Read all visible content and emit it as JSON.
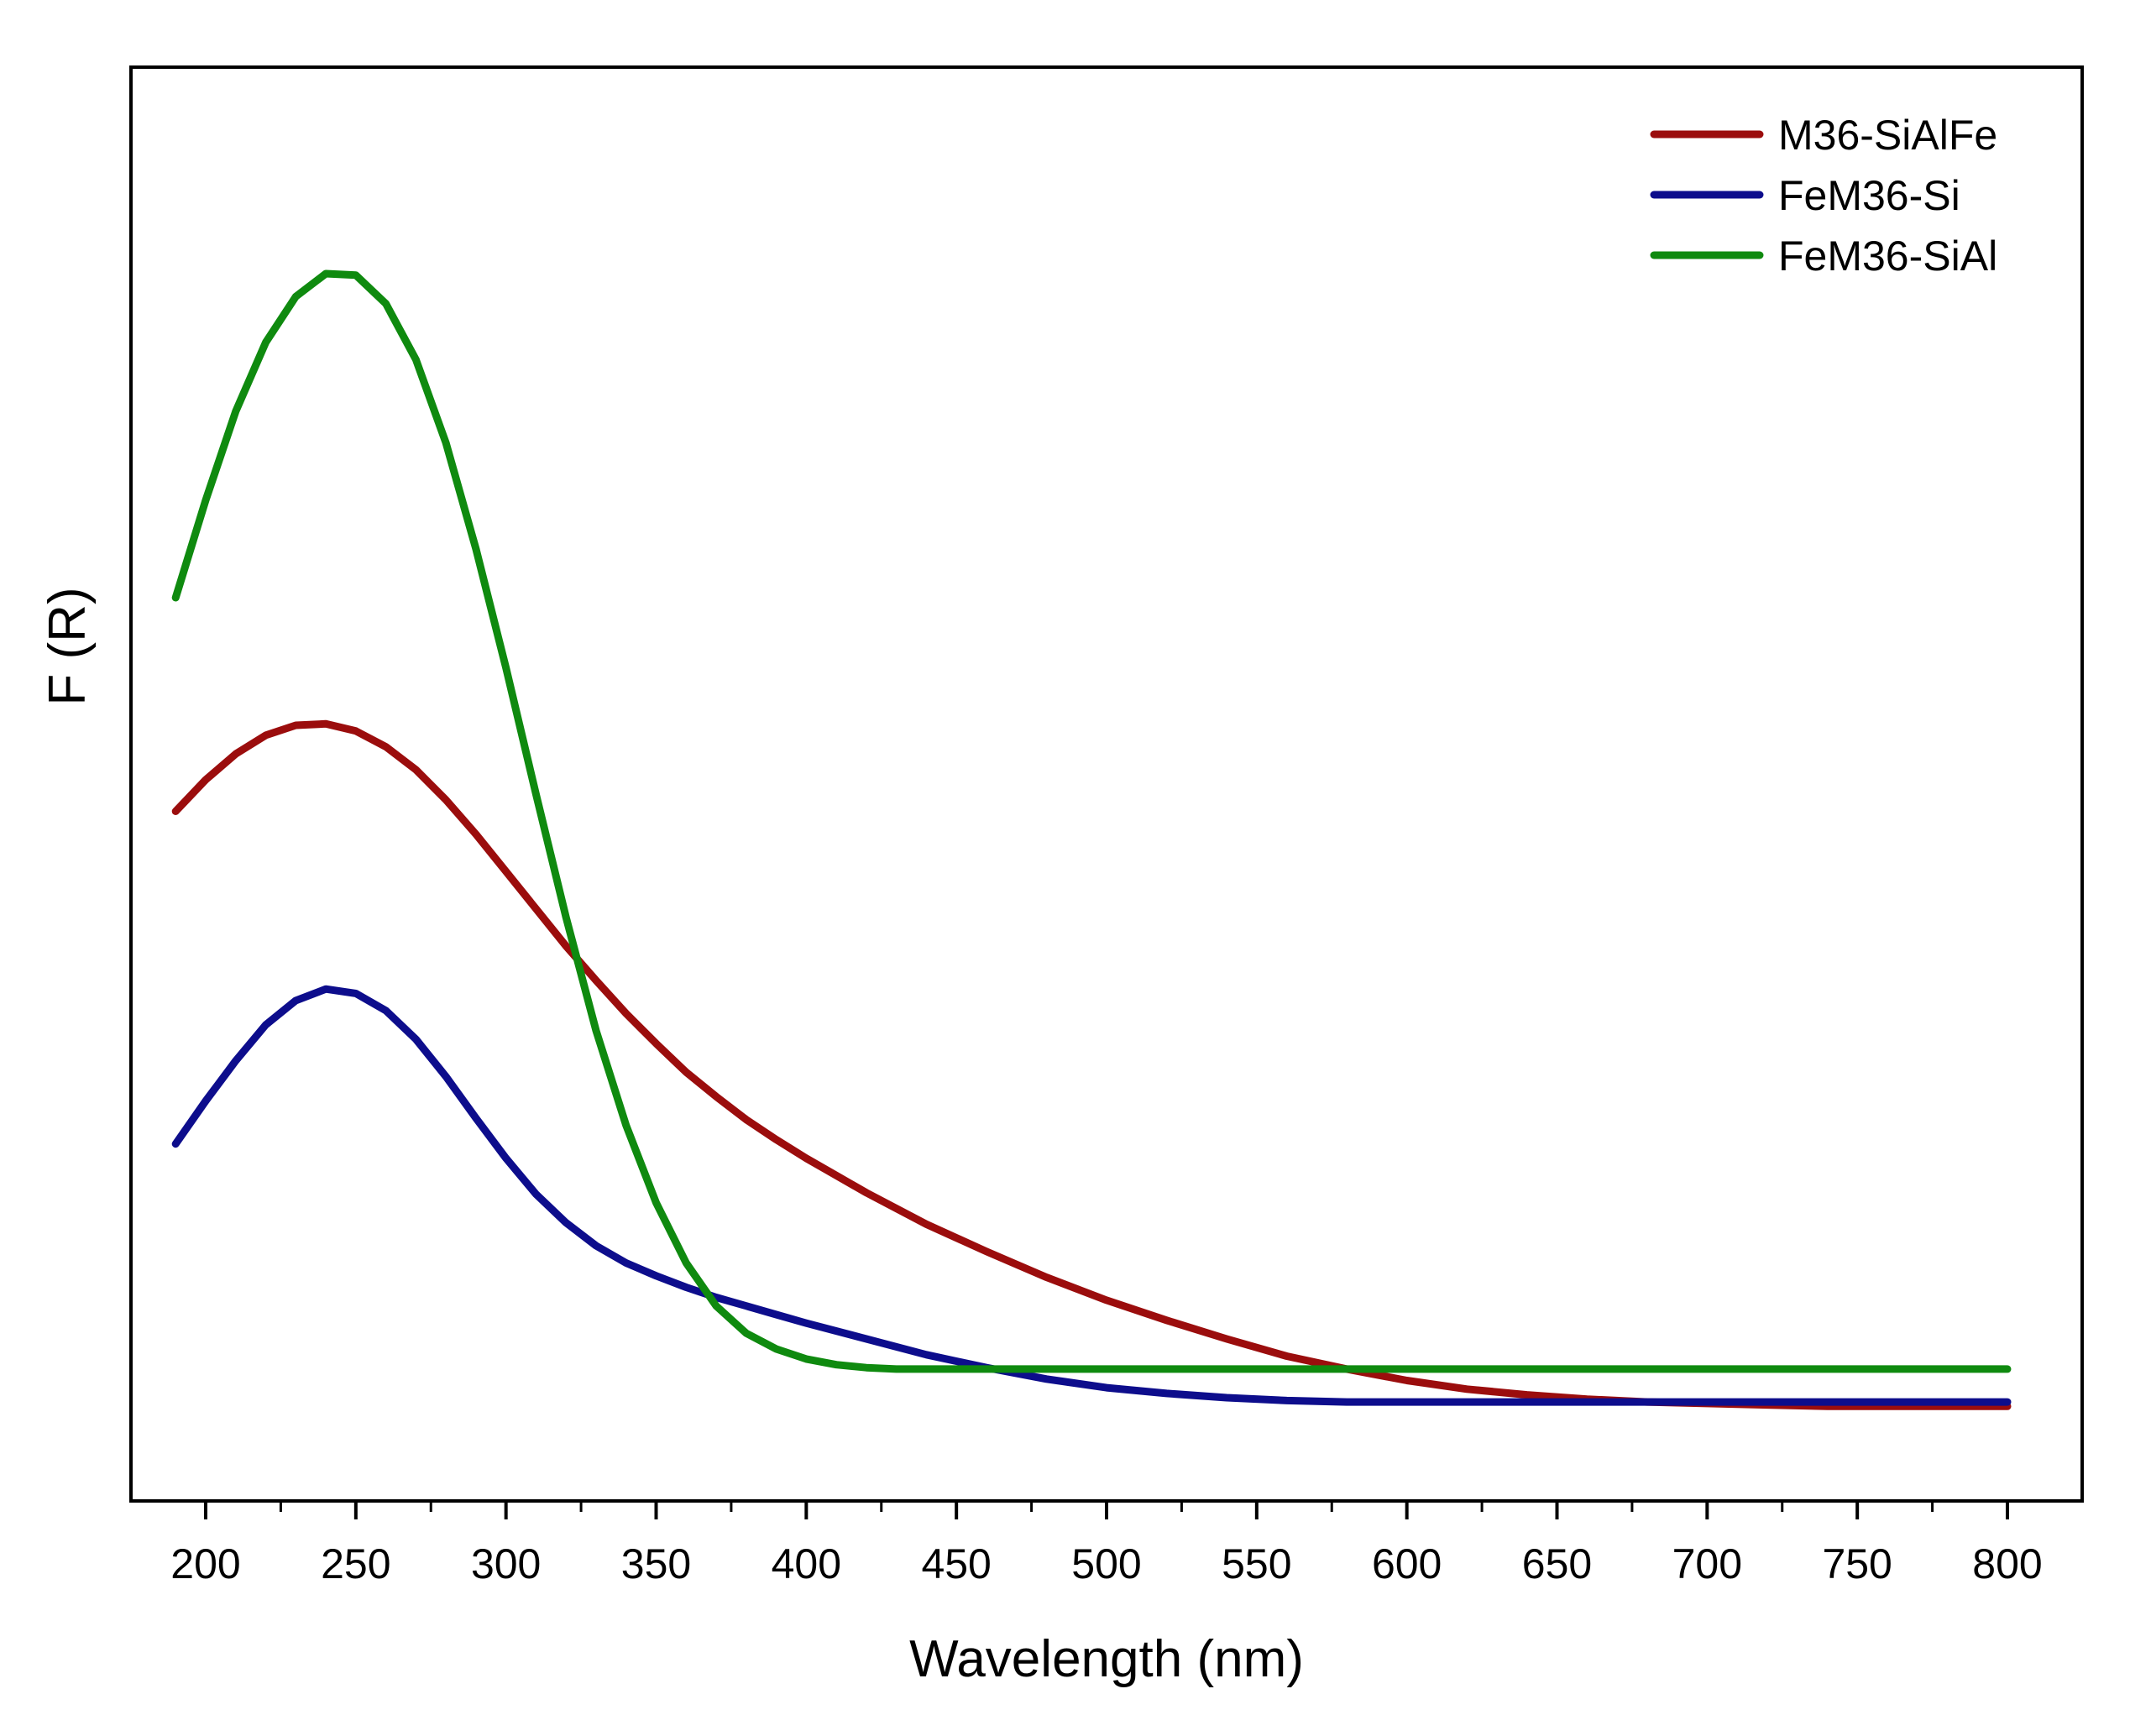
{
  "chart_data": {
    "type": "line",
    "title": "",
    "xlabel": "Wavelength (nm)",
    "ylabel": "F (R)",
    "xlim": [
      175,
      800
    ],
    "ylim": [
      0,
      1
    ],
    "x_ticks": [
      200,
      250,
      300,
      350,
      400,
      450,
      500,
      550,
      600,
      650,
      700,
      750,
      800
    ],
    "y_ticks_shown": false,
    "grid": false,
    "legend_position": "top-right",
    "series": [
      {
        "name": "M36-SiAlFe",
        "color": "#9b0d0d",
        "x": [
          190,
          200,
          210,
          220,
          230,
          240,
          250,
          260,
          270,
          280,
          290,
          300,
          310,
          320,
          330,
          340,
          350,
          360,
          370,
          380,
          390,
          400,
          420,
          440,
          460,
          480,
          500,
          520,
          540,
          560,
          580,
          600,
          620,
          640,
          660,
          680,
          700,
          720,
          740,
          760,
          780,
          800
        ],
        "y": [
          0.481,
          0.503,
          0.521,
          0.534,
          0.541,
          0.542,
          0.537,
          0.526,
          0.51,
          0.489,
          0.465,
          0.439,
          0.413,
          0.387,
          0.363,
          0.34,
          0.319,
          0.299,
          0.282,
          0.266,
          0.252,
          0.239,
          0.215,
          0.193,
          0.174,
          0.156,
          0.14,
          0.126,
          0.113,
          0.101,
          0.092,
          0.084,
          0.078,
          0.074,
          0.071,
          0.069,
          0.068,
          0.067,
          0.066,
          0.066,
          0.066,
          0.066
        ]
      },
      {
        "name": "FeM36-Si",
        "color": "#0d0d8c",
        "x": [
          190,
          200,
          210,
          220,
          230,
          240,
          250,
          260,
          270,
          280,
          290,
          300,
          310,
          320,
          330,
          340,
          350,
          360,
          370,
          380,
          390,
          400,
          420,
          440,
          460,
          480,
          500,
          520,
          540,
          560,
          580,
          600,
          620,
          640,
          660,
          680,
          700,
          720,
          740,
          760,
          780,
          800
        ],
        "y": [
          0.249,
          0.279,
          0.307,
          0.332,
          0.349,
          0.357,
          0.354,
          0.342,
          0.322,
          0.296,
          0.267,
          0.239,
          0.214,
          0.194,
          0.178,
          0.166,
          0.157,
          0.149,
          0.142,
          0.136,
          0.13,
          0.124,
          0.113,
          0.102,
          0.093,
          0.085,
          0.079,
          0.075,
          0.072,
          0.07,
          0.069,
          0.069,
          0.069,
          0.069,
          0.069,
          0.069,
          0.069,
          0.069,
          0.069,
          0.069,
          0.069,
          0.069
        ]
      },
      {
        "name": "FeM36-SiAl",
        "color": "#0f8a0f",
        "x": [
          190,
          200,
          210,
          220,
          230,
          240,
          250,
          260,
          270,
          280,
          290,
          300,
          310,
          320,
          330,
          340,
          350,
          360,
          370,
          380,
          390,
          400,
          410,
          420,
          430,
          440,
          450,
          460,
          480,
          500,
          550,
          600,
          650,
          700,
          750,
          800
        ],
        "y": [
          0.63,
          0.698,
          0.76,
          0.808,
          0.84,
          0.856,
          0.855,
          0.835,
          0.796,
          0.738,
          0.664,
          0.581,
          0.493,
          0.407,
          0.328,
          0.262,
          0.208,
          0.166,
          0.136,
          0.117,
          0.106,
          0.099,
          0.095,
          0.093,
          0.092,
          0.092,
          0.092,
          0.092,
          0.092,
          0.092,
          0.092,
          0.092,
          0.092,
          0.092,
          0.092,
          0.092
        ]
      }
    ]
  }
}
